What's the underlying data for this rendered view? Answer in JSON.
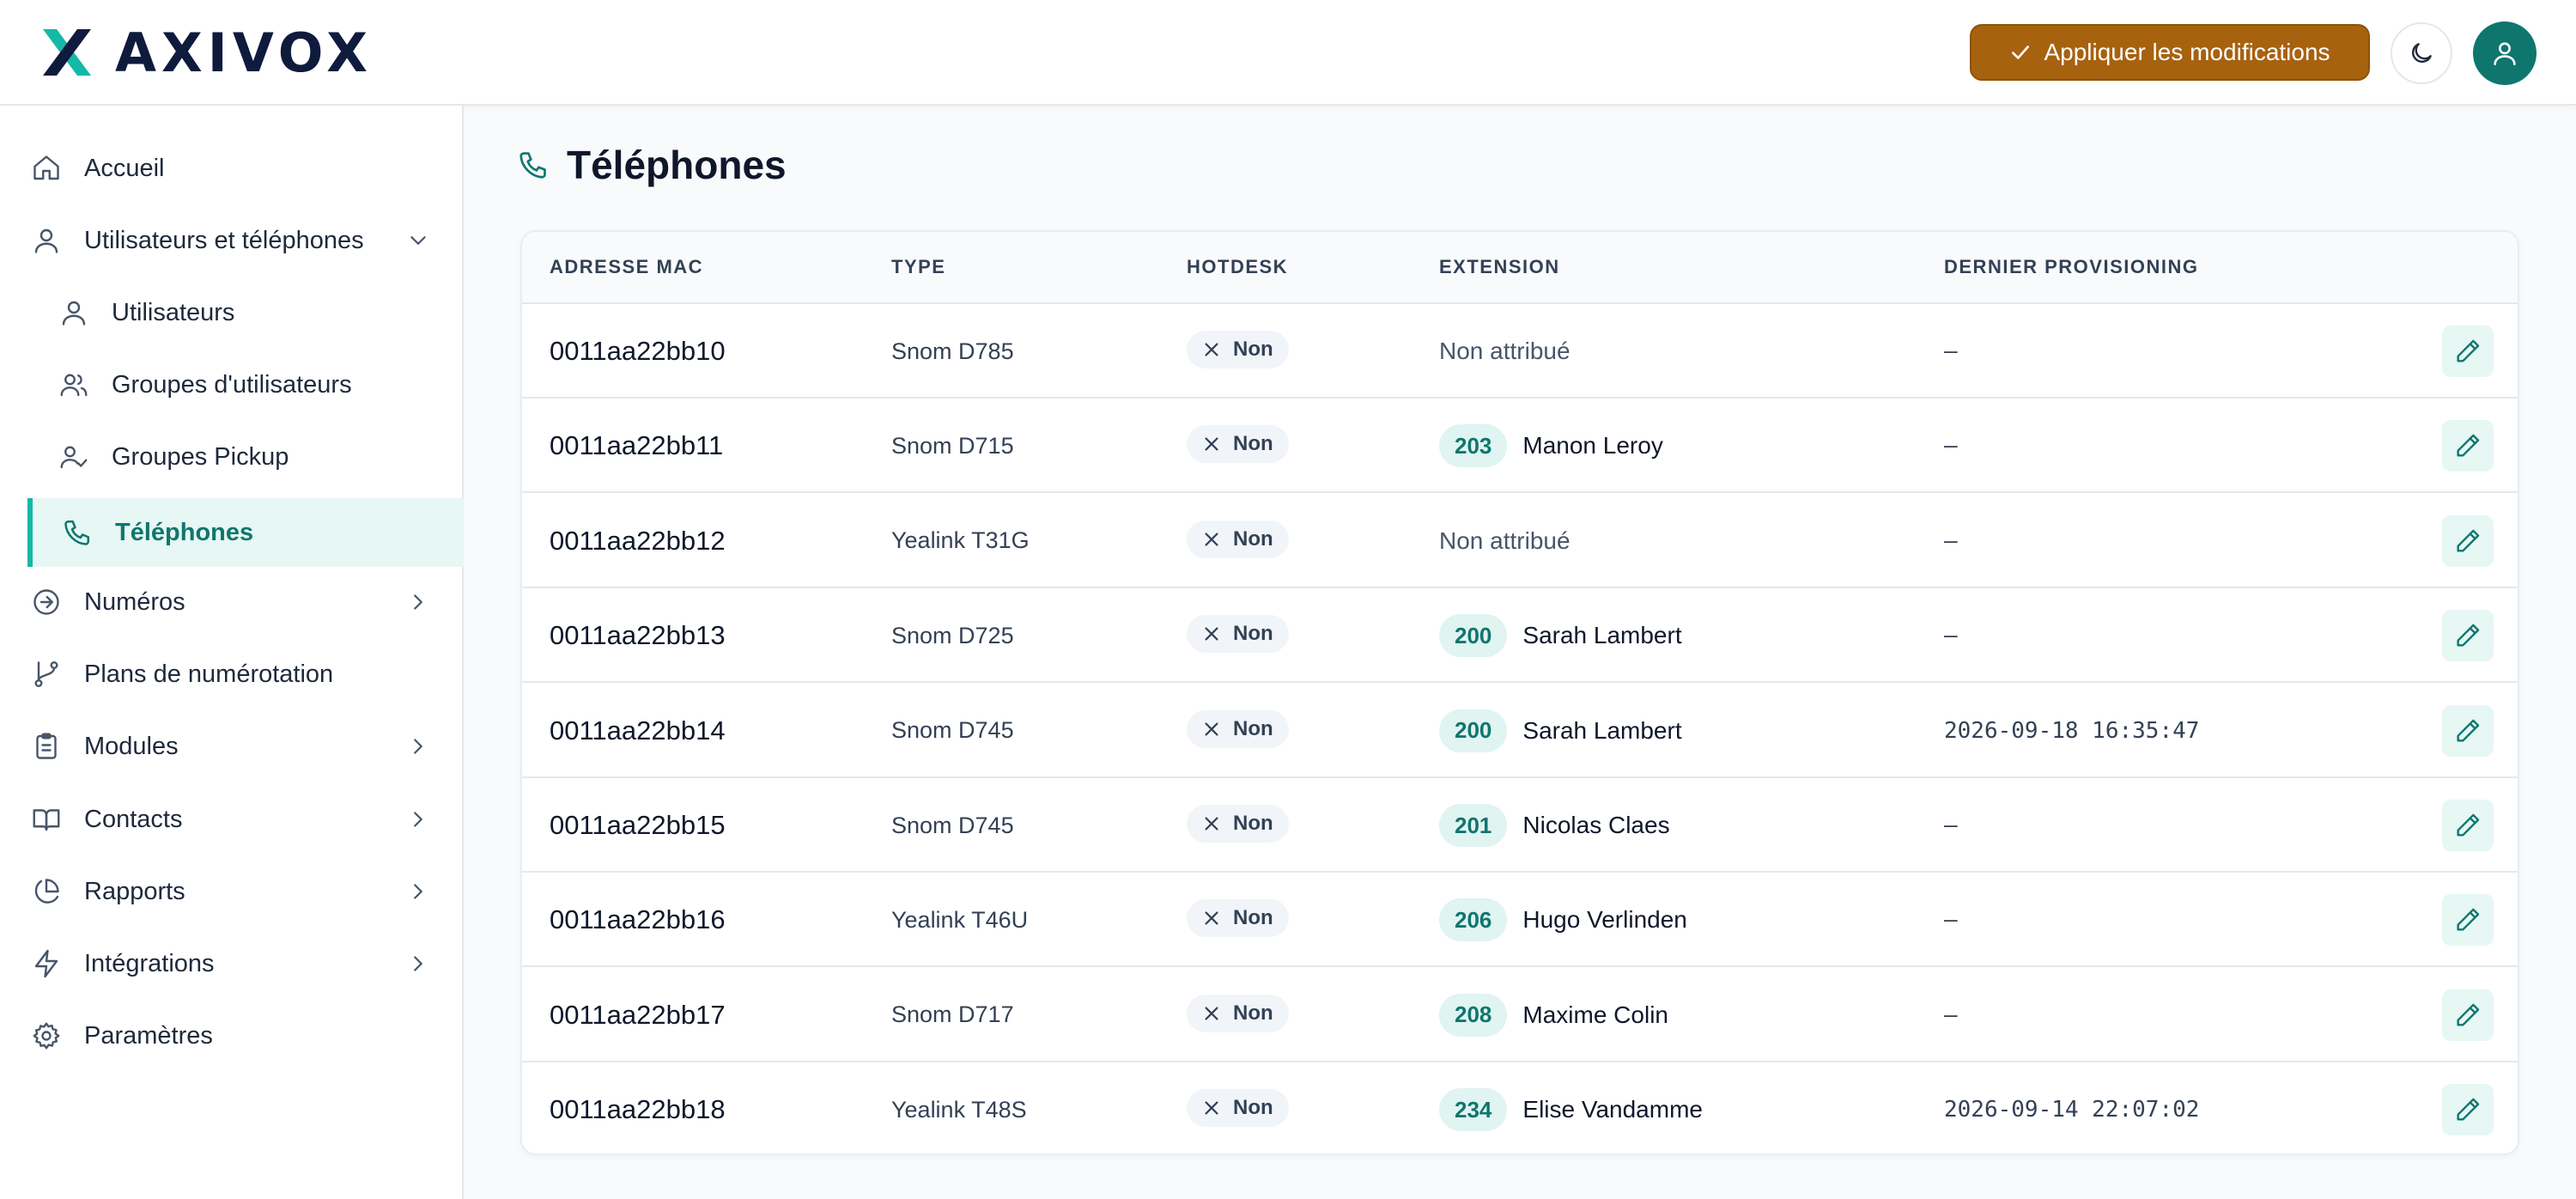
{
  "brand": {
    "name": "AXIVOX",
    "accent": "#14b8a6",
    "navy": "#0f1b3d"
  },
  "header": {
    "apply_label": "Appliquer les modifications",
    "apply_color": "#a7620f",
    "theme_icon": "moon-icon",
    "avatar_icon": "user-icon"
  },
  "sidebar": {
    "items": [
      {
        "label": "Accueil",
        "icon": "home-icon"
      },
      {
        "label": "Utilisateurs et téléphones",
        "icon": "user-icon",
        "expanded": true
      },
      {
        "label": "Utilisateurs",
        "icon": "user-icon"
      },
      {
        "label": "Groupes d'utilisateurs",
        "icon": "users-icon"
      },
      {
        "label": "Groupes Pickup",
        "icon": "user-check-icon"
      },
      {
        "label": "Téléphones",
        "icon": "phone-icon",
        "active": true
      },
      {
        "label": "Numéros",
        "icon": "arrow-circle-icon"
      },
      {
        "label": "Plans de numérotation",
        "icon": "git-branch-icon"
      },
      {
        "label": "Modules",
        "icon": "clipboard-icon"
      },
      {
        "label": "Contacts",
        "icon": "book-icon"
      },
      {
        "label": "Rapports",
        "icon": "pie-chart-icon"
      },
      {
        "label": "Intégrations",
        "icon": "zap-icon"
      },
      {
        "label": "Paramètres",
        "icon": "gear-icon"
      }
    ]
  },
  "main": {
    "title": "Téléphones",
    "columns": [
      "ADRESSE MAC",
      "TYPE",
      "HOTDESK",
      "EXTENSION",
      "DERNIER PROVISIONING"
    ],
    "rows": [
      {
        "mac": "0011aa22bb10",
        "type": "Snom D785",
        "hotdesk": "Non",
        "ext_num": "",
        "ext_name": "Non attribué",
        "provisioning": "—"
      },
      {
        "mac": "0011aa22bb11",
        "type": "Snom D715",
        "hotdesk": "Non",
        "ext_num": "203",
        "ext_name": "Manon Leroy",
        "provisioning": "—"
      },
      {
        "mac": "0011aa22bb12",
        "type": "Yealink T31G",
        "hotdesk": "Non",
        "ext_num": "",
        "ext_name": "Non attribué",
        "provisioning": "—"
      },
      {
        "mac": "0011aa22bb13",
        "type": "Snom D725",
        "hotdesk": "Non",
        "ext_num": "200",
        "ext_name": "Sarah Lambert",
        "provisioning": "—"
      },
      {
        "mac": "0011aa22bb14",
        "type": "Snom D745",
        "hotdesk": "Non",
        "ext_num": "200",
        "ext_name": "Sarah Lambert",
        "provisioning": "2026-09-18 16:35:47"
      },
      {
        "mac": "0011aa22bb15",
        "type": "Snom D745",
        "hotdesk": "Non",
        "ext_num": "201",
        "ext_name": "Nicolas Claes",
        "provisioning": "—"
      },
      {
        "mac": "0011aa22bb16",
        "type": "Yealink T46U",
        "hotdesk": "Non",
        "ext_num": "206",
        "ext_name": "Hugo Verlinden",
        "provisioning": "—"
      },
      {
        "mac": "0011aa22bb17",
        "type": "Snom D717",
        "hotdesk": "Non",
        "ext_num": "208",
        "ext_name": "Maxime Colin",
        "provisioning": "—"
      },
      {
        "mac": "0011aa22bb18",
        "type": "Yealink T48S",
        "hotdesk": "Non",
        "ext_num": "234",
        "ext_name": "Elise Vandamme",
        "provisioning": "2026-09-14 22:07:02"
      }
    ]
  }
}
